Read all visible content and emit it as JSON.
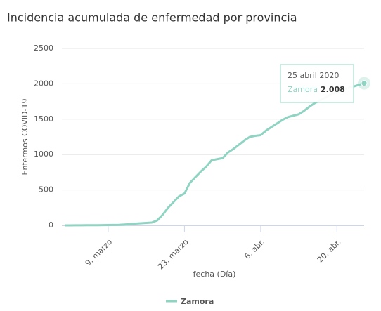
{
  "chart_data": {
    "type": "line",
    "title": "Incidencia acumulada de enfermedad por provincia",
    "y_label": "Enfermos COVID-19",
    "x_label": "fecha (Día)",
    "x": [
      "2020-03-01",
      "2020-03-02",
      "2020-03-03",
      "2020-03-04",
      "2020-03-05",
      "2020-03-06",
      "2020-03-07",
      "2020-03-08",
      "2020-03-09",
      "2020-03-10",
      "2020-03-11",
      "2020-03-12",
      "2020-03-13",
      "2020-03-14",
      "2020-03-15",
      "2020-03-16",
      "2020-03-17",
      "2020-03-18",
      "2020-03-19",
      "2020-03-20",
      "2020-03-21",
      "2020-03-22",
      "2020-03-23",
      "2020-03-24",
      "2020-03-25",
      "2020-03-26",
      "2020-03-27",
      "2020-03-28",
      "2020-03-29",
      "2020-03-30",
      "2020-03-31",
      "2020-04-01",
      "2020-04-02",
      "2020-04-03",
      "2020-04-04",
      "2020-04-05",
      "2020-04-06",
      "2020-04-07",
      "2020-04-08",
      "2020-04-09",
      "2020-04-10",
      "2020-04-11",
      "2020-04-12",
      "2020-04-13",
      "2020-04-14",
      "2020-04-15",
      "2020-04-16",
      "2020-04-17",
      "2020-04-18",
      "2020-04-19",
      "2020-04-20",
      "2020-04-21",
      "2020-04-22",
      "2020-04-23",
      "2020-04-24",
      "2020-04-25"
    ],
    "series": [
      {
        "name": "Zamora",
        "color": "#8fd3c2",
        "values": [
          0,
          0,
          1,
          1,
          2,
          2,
          3,
          4,
          5,
          6,
          8,
          12,
          18,
          25,
          30,
          35,
          40,
          70,
          150,
          250,
          330,
          410,
          450,
          600,
          680,
          760,
          830,
          920,
          935,
          950,
          1030,
          1080,
          1140,
          1200,
          1250,
          1265,
          1275,
          1340,
          1390,
          1440,
          1490,
          1530,
          1550,
          1570,
          1620,
          1680,
          1730,
          1770,
          1810,
          1850,
          1880,
          1910,
          1940,
          1960,
          1985,
          2008
        ]
      }
    ],
    "xlim": [
      "2020-03-01",
      "2020-04-25"
    ],
    "xticks": [
      {
        "value": "2020-03-09",
        "label": "9. marzo"
      },
      {
        "value": "2020-03-23",
        "label": "23. marzo"
      },
      {
        "value": "2020-04-06",
        "label": "6. abr."
      },
      {
        "value": "2020-04-20",
        "label": "20. abr."
      }
    ],
    "ylim": [
      0,
      2500
    ],
    "yticks": [
      0,
      500,
      1000,
      1500,
      2000,
      2500
    ],
    "grid": true,
    "tooltip": {
      "title": "25 abril 2020",
      "value_label": "2.008"
    }
  }
}
